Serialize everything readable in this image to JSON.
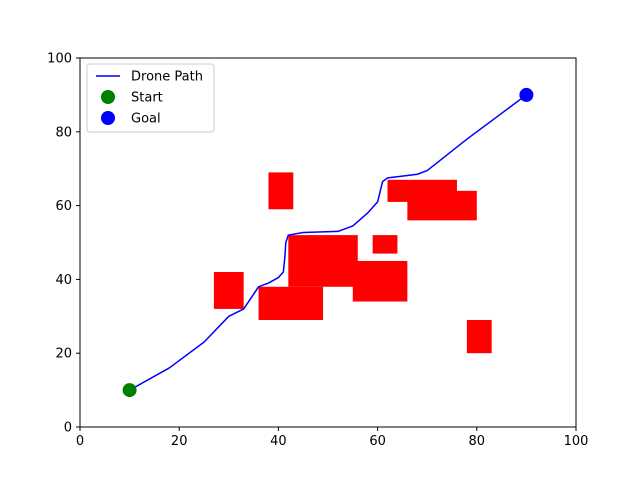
{
  "chart_data": {
    "type": "scatter",
    "xlim": [
      0,
      100
    ],
    "ylim": [
      0,
      100
    ],
    "x_ticks": [
      0,
      20,
      40,
      60,
      80,
      100
    ],
    "y_ticks": [
      0,
      20,
      40,
      60,
      80,
      100
    ],
    "grid": false,
    "legend_placement": "top-left",
    "legend": [
      {
        "label": "Drone Path",
        "kind": "line",
        "color": "#0000ff"
      },
      {
        "label": "Start",
        "kind": "marker",
        "color": "#008000"
      },
      {
        "label": "Goal",
        "kind": "marker",
        "color": "#0000ff"
      }
    ],
    "obstacles": {
      "color": "#ff0000",
      "rects": [
        {
          "x0": 38,
          "x1": 43,
          "y0": 59,
          "y1": 69
        },
        {
          "x0": 62,
          "x1": 76,
          "y0": 61,
          "y1": 67
        },
        {
          "x0": 66,
          "x1": 80,
          "y0": 56,
          "y1": 64
        },
        {
          "x0": 42,
          "x1": 56,
          "y0": 38,
          "y1": 52
        },
        {
          "x0": 59,
          "x1": 64,
          "y0": 47,
          "y1": 52
        },
        {
          "x0": 55,
          "x1": 66,
          "y0": 34,
          "y1": 45
        },
        {
          "x0": 27,
          "x1": 33,
          "y0": 32,
          "y1": 42
        },
        {
          "x0": 36,
          "x1": 49,
          "y0": 29,
          "y1": 38
        },
        {
          "x0": 78,
          "x1": 83,
          "y0": 20,
          "y1": 29
        }
      ]
    },
    "path": {
      "name": "Drone Path",
      "color": "#0000ff",
      "points": [
        [
          10,
          10
        ],
        [
          18,
          16
        ],
        [
          25,
          23
        ],
        [
          30,
          30
        ],
        [
          33,
          32
        ],
        [
          35,
          36
        ],
        [
          36,
          38
        ],
        [
          38,
          39
        ],
        [
          40,
          40.5
        ],
        [
          41,
          42
        ],
        [
          41.3,
          46
        ],
        [
          41.5,
          50
        ],
        [
          42,
          52
        ],
        [
          45,
          52.7
        ],
        [
          52,
          53
        ],
        [
          55,
          54.5
        ],
        [
          58,
          58
        ],
        [
          60,
          61
        ],
        [
          61,
          66.5
        ],
        [
          62,
          67.5
        ],
        [
          65,
          68
        ],
        [
          68,
          68.5
        ],
        [
          70,
          69.5
        ],
        [
          78,
          78
        ],
        [
          84,
          84
        ],
        [
          90,
          90
        ]
      ]
    },
    "start": {
      "label": "Start",
      "x": 10,
      "y": 10,
      "color": "#008000"
    },
    "goal": {
      "label": "Goal",
      "x": 90,
      "y": 90,
      "color": "#0000ff"
    }
  }
}
